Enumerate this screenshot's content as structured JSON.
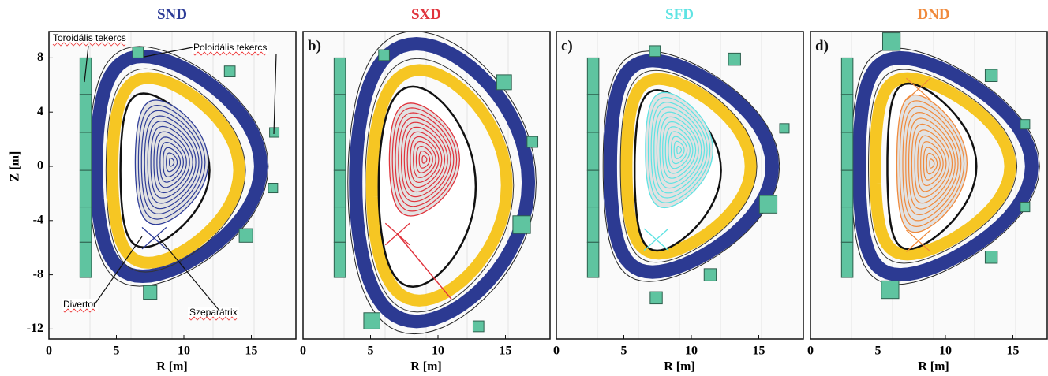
{
  "panels": [
    {
      "title": "SND",
      "color": "#2e3d98"
    },
    {
      "title": "SXD",
      "label": "b)",
      "color": "#e0333c"
    },
    {
      "title": "SFD",
      "label": "c)",
      "color": "#5ee3e3"
    },
    {
      "title": "DND",
      "label": "d)",
      "color": "#f08a3c"
    }
  ],
  "x_axis": {
    "label": "R [m]",
    "ticks": [
      0,
      5,
      10,
      15
    ]
  },
  "y_axis": {
    "label": "Z [m]",
    "ticks": [
      8,
      4,
      0,
      -4,
      -8,
      -12
    ]
  },
  "annotations": {
    "toroidal_coil": "Toroidális tekercs",
    "poloidal_coil": "Poloidális tekercs",
    "divertor": "Divertor",
    "separatrix": "Szeparátrix"
  }
}
